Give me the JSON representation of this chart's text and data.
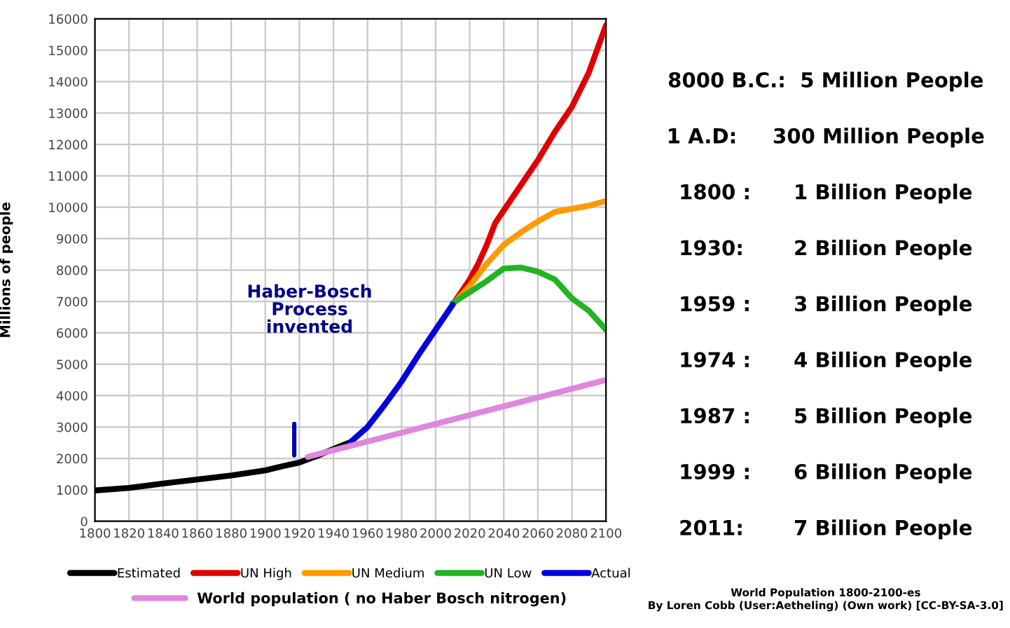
{
  "chart_data": [
    {
      "type": "line",
      "ylabel": "Millions of people",
      "xlim": [
        1800,
        2100
      ],
      "ylim": [
        0,
        16000
      ],
      "xticks": [
        1800,
        1820,
        1840,
        1860,
        1880,
        1900,
        1920,
        1940,
        1960,
        1980,
        2000,
        2020,
        2040,
        2060,
        2080,
        2100
      ],
      "yticks": [
        0,
        1000,
        2000,
        3000,
        4000,
        5000,
        6000,
        7000,
        8000,
        9000,
        10000,
        11000,
        12000,
        13000,
        14000,
        15000,
        16000
      ],
      "grid": true,
      "legend": "bottom",
      "line_style": "solid",
      "marker": "none",
      "series": [
        {
          "name": "Estimated",
          "color": "#000000",
          "x": [
            1800,
            1820,
            1840,
            1860,
            1880,
            1900,
            1910,
            1920,
            1930,
            1940,
            1950
          ],
          "values": [
            980,
            1060,
            1200,
            1330,
            1460,
            1620,
            1750,
            1870,
            2070,
            2300,
            2520
          ]
        },
        {
          "name": "UN High",
          "color": "#e00000",
          "x": [
            2010,
            2020,
            2025,
            2030,
            2035,
            2040,
            2050,
            2060,
            2070,
            2080,
            2090,
            2100
          ],
          "values": [
            6900,
            7700,
            8200,
            8800,
            9500,
            9900,
            10700,
            11500,
            12400,
            13200,
            14300,
            15800
          ]
        },
        {
          "name": "UN Medium",
          "color": "#ff9900",
          "x": [
            2010,
            2020,
            2030,
            2040,
            2050,
            2060,
            2070,
            2080,
            2090,
            2100
          ],
          "values": [
            6900,
            7500,
            8200,
            8800,
            9200,
            9550,
            9850,
            9950,
            10050,
            10200
          ]
        },
        {
          "name": "UN Low",
          "color": "#22b422",
          "x": [
            2010,
            2020,
            2030,
            2040,
            2050,
            2060,
            2070,
            2080,
            2090,
            2100
          ],
          "values": [
            6950,
            7300,
            7650,
            8050,
            8080,
            7950,
            7700,
            7100,
            6700,
            6100
          ]
        },
        {
          "name": "Actual",
          "color": "#0000dd",
          "x": [
            1950,
            1960,
            1970,
            1980,
            1990,
            2000,
            2010
          ],
          "values": [
            2520,
            3000,
            3700,
            4450,
            5300,
            6100,
            6900
          ]
        },
        {
          "name": "World population ( no Haber Bosch nitrogen)",
          "color": "#dd88dd",
          "x": [
            1925,
            2100
          ],
          "values": [
            2050,
            4500
          ]
        },
        {
          "color": "#0000aa",
          "x": [
            1917,
            1917
          ],
          "values": [
            2100,
            3100
          ]
        }
      ],
      "annotations": [
        "Haber-Bosch\nProcess\ninvented"
      ]
    },
    {
      "type": "other",
      "annotations": [
        "8000 B.C.:  5 Million People",
        "1 A.D:     300 Million People",
        "1800 :      1 Billion People",
        "1930:       2 Billion People",
        "1959 :      3 Billion People",
        "1974 :      4 Billion People",
        "1987 :      5 Billion People",
        "1999 :      6 Billion People",
        "2011:       7 Billion People",
        "World Population 1800-2100-es\nBy Loren Cobb (User:Aetheling) (Own work) [CC-BY-SA-3.0]"
      ]
    }
  ]
}
